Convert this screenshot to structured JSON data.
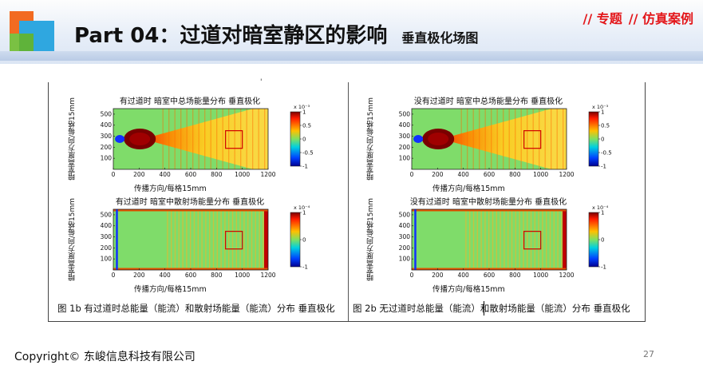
{
  "header": {
    "title": "Part 04：过道对暗室静区的影响",
    "subtitle": "垂直极化场图",
    "tags": [
      "// 专题",
      "// 仿真案例"
    ]
  },
  "plots": [
    {
      "title": "有过道时 暗室中总场能量分布 垂直极化",
      "ylabel": "暗室高度方向/每格15mm",
      "xlabel": "传播方向/每格15mm",
      "xticks": [
        "0",
        "200",
        "400",
        "600",
        "800",
        "1000",
        "1200"
      ],
      "yticks": [
        "500",
        "400",
        "300",
        "200",
        "100"
      ],
      "cbar_exp": "x 10⁻³",
      "cbar_ticks": [
        "1",
        "0.5",
        "0",
        "-0.5",
        "-1"
      ]
    },
    {
      "title": "没有过道时 暗室中总场能量分布 垂直极化",
      "ylabel": "暗室高度方向/每格15mm",
      "xlabel": "传播方向/每格15mm",
      "xticks": [
        "0",
        "200",
        "400",
        "600",
        "800",
        "1000",
        "1200"
      ],
      "yticks": [
        "500",
        "400",
        "300",
        "200",
        "100"
      ],
      "cbar_exp": "x 10⁻³",
      "cbar_ticks": [
        "1",
        "0.5",
        "0",
        "-0.5",
        "-1"
      ]
    },
    {
      "title": "有过道时 暗室中散射场能量分布 垂直极化",
      "ylabel": "暗室高度方向/每格15mm",
      "xlabel": "传播方向/每格15mm",
      "xticks": [
        "0",
        "200",
        "400",
        "600",
        "800",
        "1000",
        "1200"
      ],
      "yticks": [
        "500",
        "400",
        "300",
        "200",
        "100"
      ],
      "cbar_exp": "x 10⁻⁴",
      "cbar_ticks": [
        "1",
        "0",
        "-1"
      ]
    },
    {
      "title": "没有过道时 暗室中散射场能量分布 垂直极化",
      "ylabel": "暗室高度方向/每格15mm",
      "xlabel": "传播方向/每格15mm",
      "xticks": [
        "0",
        "200",
        "400",
        "600",
        "800",
        "1000",
        "1200"
      ],
      "yticks": [
        "500",
        "400",
        "300",
        "200",
        "100"
      ],
      "cbar_exp": "x 10⁻⁴",
      "cbar_ticks": [
        "1",
        "0",
        "-1"
      ]
    }
  ],
  "captions": {
    "left": "图 1b  有过道时总能量（能流）和散射场能量（能流）分布  垂直极化",
    "right": "图 2b  无过道时总能量（能流）和散射场能量（能流）分布  垂直极化"
  },
  "dot": "'",
  "footer": {
    "copyright": "Copyright© 东峻信息科技有限公司",
    "page_number": "27"
  },
  "colors": {
    "accent_red": "#e3161a",
    "logo_orange": "#f26b21",
    "logo_green": "#7ac143",
    "logo_blue": "#2fa7e0"
  }
}
